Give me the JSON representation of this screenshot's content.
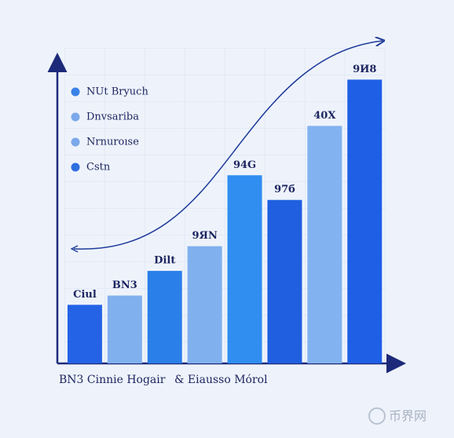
{
  "chart_data": {
    "type": "bar",
    "categories": [
      null,
      null,
      null,
      null,
      null,
      null,
      null,
      null
    ],
    "values": [
      19,
      22,
      30,
      38,
      61,
      53,
      77,
      92
    ],
    "bar_labels": [
      "Ciul",
      "BN3",
      "Dilt",
      "9ЯN",
      "94G",
      "97б",
      "40X",
      "9И8"
    ],
    "colors": [
      "#2563e6",
      "#80b0ee",
      "#2b7fe8",
      "#80b0ee",
      "#2f8ef0",
      "#1f5fe0",
      "#82b2f0",
      "#1e5fe6"
    ],
    "ylim": [
      0,
      100
    ],
    "legend": [
      {
        "label": "NUt Bryuch",
        "color": "#3b82e8"
      },
      {
        "label": "Dnvsariba",
        "color": "#7aa8ea"
      },
      {
        "label": "Nrnuroıse",
        "color": "#7aa8ea"
      },
      {
        "label": "Cstn",
        "color": "#2e6fe0"
      }
    ],
    "xlabel": [
      "BN3 Cinnie Hogair",
      "& Eiausso Mórol"
    ]
  },
  "watermark": "币界网"
}
